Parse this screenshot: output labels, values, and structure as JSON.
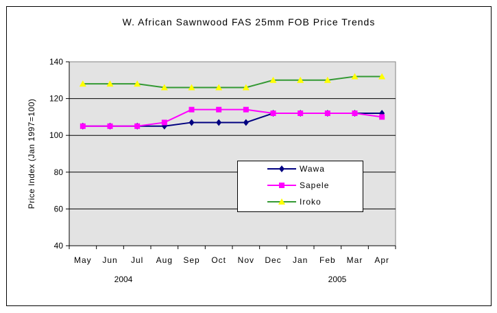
{
  "chart_data": {
    "type": "line",
    "title": "W. African Sawnwood FAS 25mm FOB Price Trends",
    "xlabel": "",
    "ylabel": "Price Index (Jan 1997=100)",
    "categories": [
      "May",
      "Jun",
      "Jul",
      "Aug",
      "Sep",
      "Oct",
      "Nov",
      "Dec",
      "Jan",
      "Feb",
      "Mar",
      "Apr"
    ],
    "year_labels": [
      "2004",
      "2005"
    ],
    "ylim": [
      40,
      140
    ],
    "yticks": [
      40,
      60,
      80,
      100,
      120,
      140
    ],
    "grid": true,
    "legend_position": "center-right",
    "series": [
      {
        "name": "Wawa",
        "color": "#000080",
        "marker": "diamond",
        "values": [
          105,
          105,
          105,
          105,
          107,
          107,
          107,
          112,
          112,
          112,
          112,
          112
        ]
      },
      {
        "name": "Sapele",
        "color": "#ff00ff",
        "marker": "square",
        "values": [
          105,
          105,
          105,
          107,
          114,
          114,
          114,
          112,
          112,
          112,
          112,
          110
        ]
      },
      {
        "name": "Iroko",
        "color": "#339933",
        "markerColor": "#ffff00",
        "marker": "triangle",
        "values": [
          128,
          128,
          128,
          126,
          126,
          126,
          126,
          130,
          130,
          130,
          132,
          132
        ]
      }
    ]
  }
}
